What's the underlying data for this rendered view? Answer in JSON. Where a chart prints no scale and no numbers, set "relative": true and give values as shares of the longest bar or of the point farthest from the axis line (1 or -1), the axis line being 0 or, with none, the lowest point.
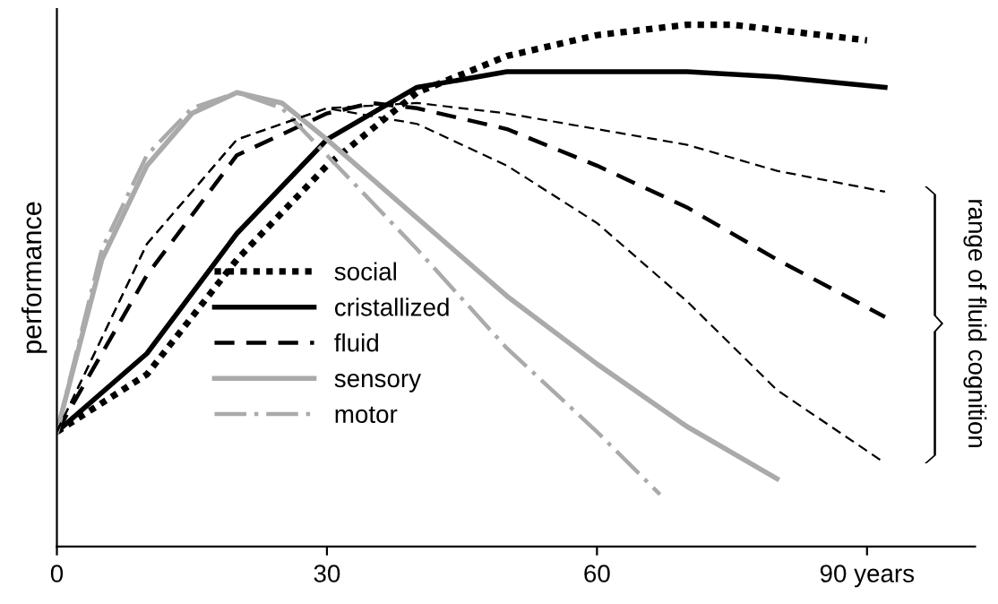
{
  "chart_data": {
    "type": "line",
    "relative": true,
    "ylabel": "performance",
    "xlim": [
      0,
      102
    ],
    "xticks": [
      0,
      30,
      60,
      {
        "value": 90,
        "label": "90 years"
      }
    ],
    "legend": "center",
    "grid": false,
    "annotations": [
      "range of fluid cognition"
    ],
    "series": [
      {
        "name": "social",
        "color": "#000000",
        "line_style": "dotted",
        "x": [
          0,
          10,
          20,
          30,
          40,
          50,
          60,
          70,
          75,
          80,
          90
        ],
        "values": [
          0.22,
          0.33,
          0.55,
          0.73,
          0.87,
          0.94,
          0.98,
          1.0,
          1.0,
          0.99,
          0.97
        ]
      },
      {
        "name": "cristallized",
        "color": "#000000",
        "line_style": "solid",
        "x": [
          0,
          10,
          20,
          30,
          40,
          50,
          60,
          70,
          80,
          92
        ],
        "values": [
          0.22,
          0.37,
          0.6,
          0.78,
          0.88,
          0.91,
          0.91,
          0.91,
          0.9,
          0.88
        ]
      },
      {
        "name": "fluid",
        "color": "#000000",
        "line_style": "dashed",
        "x": [
          0,
          10,
          20,
          30,
          35,
          40,
          50,
          60,
          70,
          80,
          92
        ],
        "values": [
          0.22,
          0.52,
          0.75,
          0.83,
          0.85,
          0.84,
          0.8,
          0.73,
          0.65,
          0.55,
          0.44
        ]
      },
      {
        "name": "sensory",
        "color": "#aaaaaa",
        "line_style": "solid",
        "x": [
          0,
          5,
          10,
          15,
          20,
          25,
          30,
          40,
          50,
          60,
          70,
          80
        ],
        "values": [
          0.22,
          0.55,
          0.73,
          0.83,
          0.87,
          0.85,
          0.78,
          0.63,
          0.48,
          0.35,
          0.23,
          0.13
        ]
      },
      {
        "name": "motor",
        "color": "#aaaaaa",
        "line_style": "dashdot",
        "x": [
          0,
          5,
          10,
          15,
          20,
          25,
          30,
          40,
          50,
          60,
          67
        ],
        "values": [
          0.22,
          0.57,
          0.75,
          0.84,
          0.87,
          0.84,
          0.75,
          0.57,
          0.38,
          0.22,
          0.1
        ]
      },
      {
        "color": "#000000",
        "line_style": "dashed",
        "x": [
          0,
          10,
          20,
          30,
          40,
          50,
          60,
          70,
          80,
          92
        ],
        "values": [
          0.22,
          0.58,
          0.78,
          0.84,
          0.85,
          0.83,
          0.8,
          0.77,
          0.72,
          0.68
        ]
      },
      {
        "color": "#000000",
        "line_style": "dashed",
        "x": [
          0,
          10,
          20,
          30,
          40,
          50,
          60,
          70,
          80,
          92
        ],
        "values": [
          0.22,
          0.58,
          0.78,
          0.84,
          0.81,
          0.73,
          0.62,
          0.47,
          0.3,
          0.16
        ]
      }
    ]
  }
}
